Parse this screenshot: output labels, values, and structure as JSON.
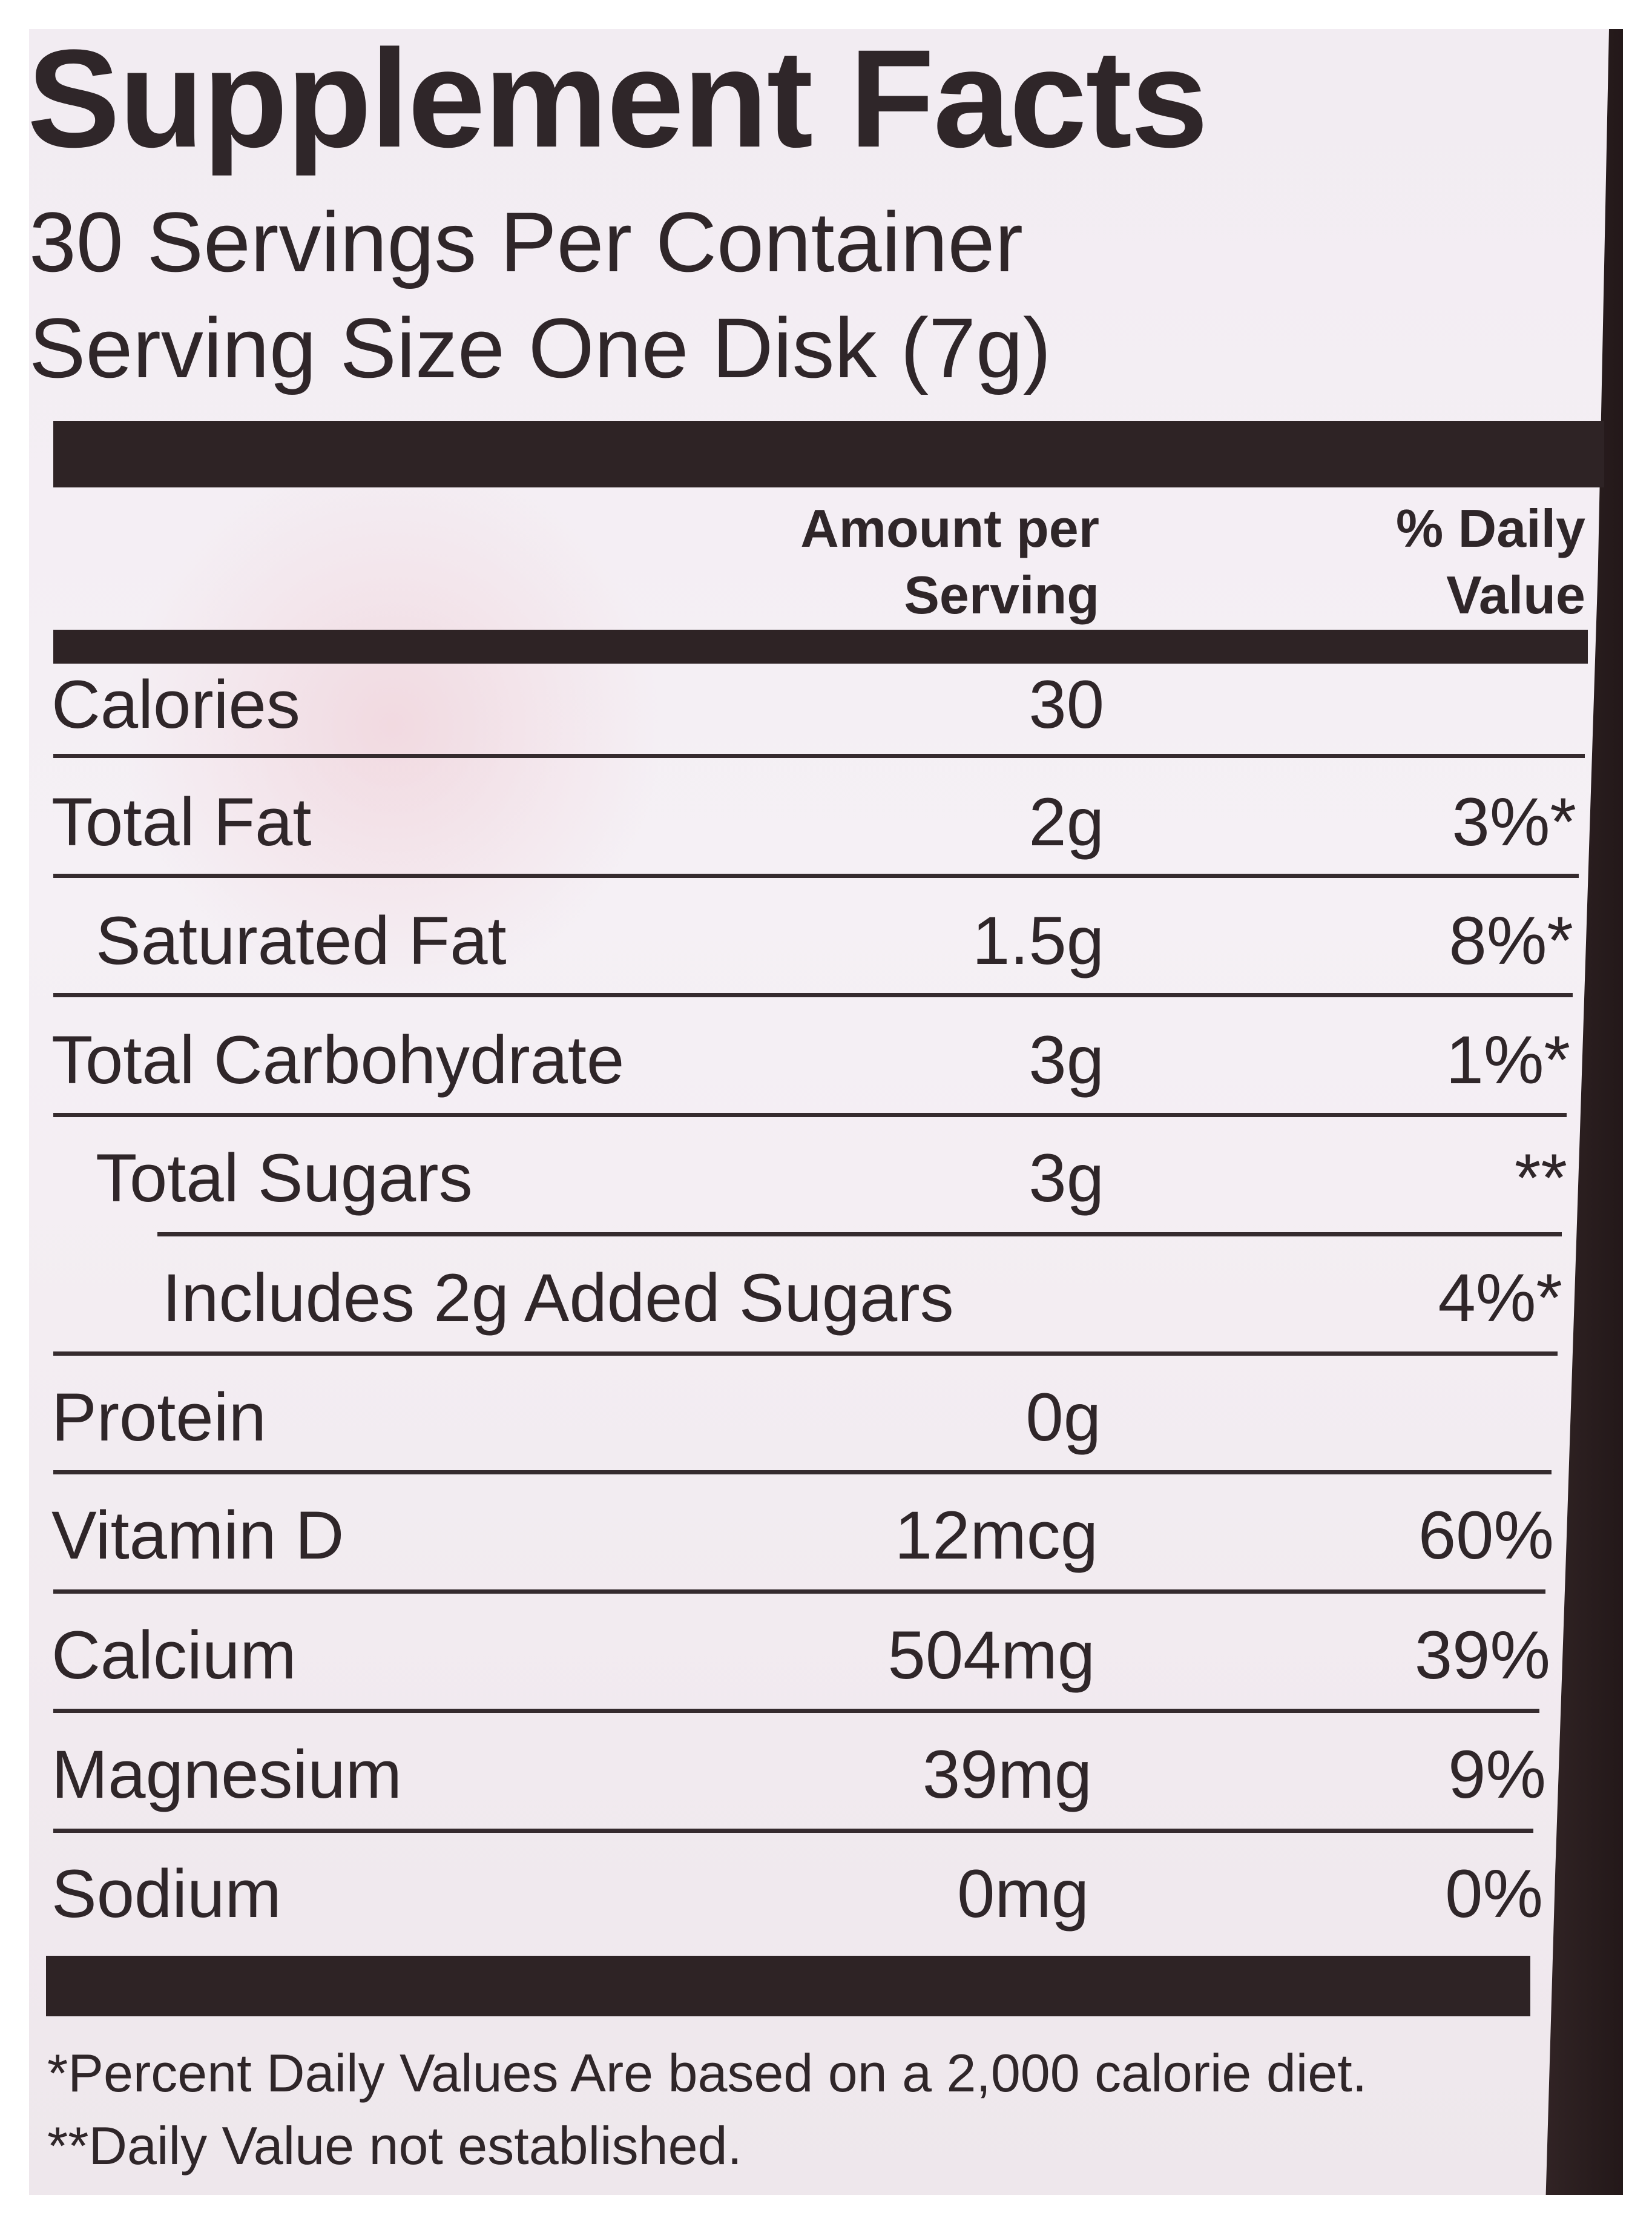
{
  "label": {
    "title": "Supplement Facts",
    "servings_per_container": "30 Servings Per Container",
    "serving_size": "Serving Size One Disk (7g)",
    "column_headers": {
      "amount_line1": "Amount per",
      "amount_line2": "Serving",
      "dv_line1": "% Daily",
      "dv_line2": "Value"
    },
    "rows": [
      {
        "nutrient": "Calories",
        "amount": "30",
        "dv": ""
      },
      {
        "nutrient": "Total Fat",
        "amount": "2g",
        "dv": "3%*"
      },
      {
        "nutrient": "Saturated Fat",
        "amount": "1.5g",
        "dv": "8%*"
      },
      {
        "nutrient": "Total Carbohydrate",
        "amount": "3g",
        "dv": "1%*"
      },
      {
        "nutrient": "Total Sugars",
        "amount": "3g",
        "dv": "**"
      },
      {
        "nutrient": "Includes 2g Added Sugars",
        "amount": "",
        "dv": "4%*"
      },
      {
        "nutrient": "Protein",
        "amount": "0g",
        "dv": ""
      },
      {
        "nutrient": "Vitamin D",
        "amount": "12mcg",
        "dv": "60%"
      },
      {
        "nutrient": "Calcium",
        "amount": "504mg",
        "dv": "39%"
      },
      {
        "nutrient": "Magnesium",
        "amount": "39mg",
        "dv": "9%"
      },
      {
        "nutrient": "Sodium",
        "amount": "0mg",
        "dv": "0%"
      }
    ],
    "footnotes": [
      "*Percent Daily Values Are based on a 2,000 calorie diet.",
      "**Daily Value not established."
    ]
  },
  "colors": {
    "ink": "#2f2629",
    "panel": "#f3edf2",
    "pouch_edge": "#231819"
  }
}
